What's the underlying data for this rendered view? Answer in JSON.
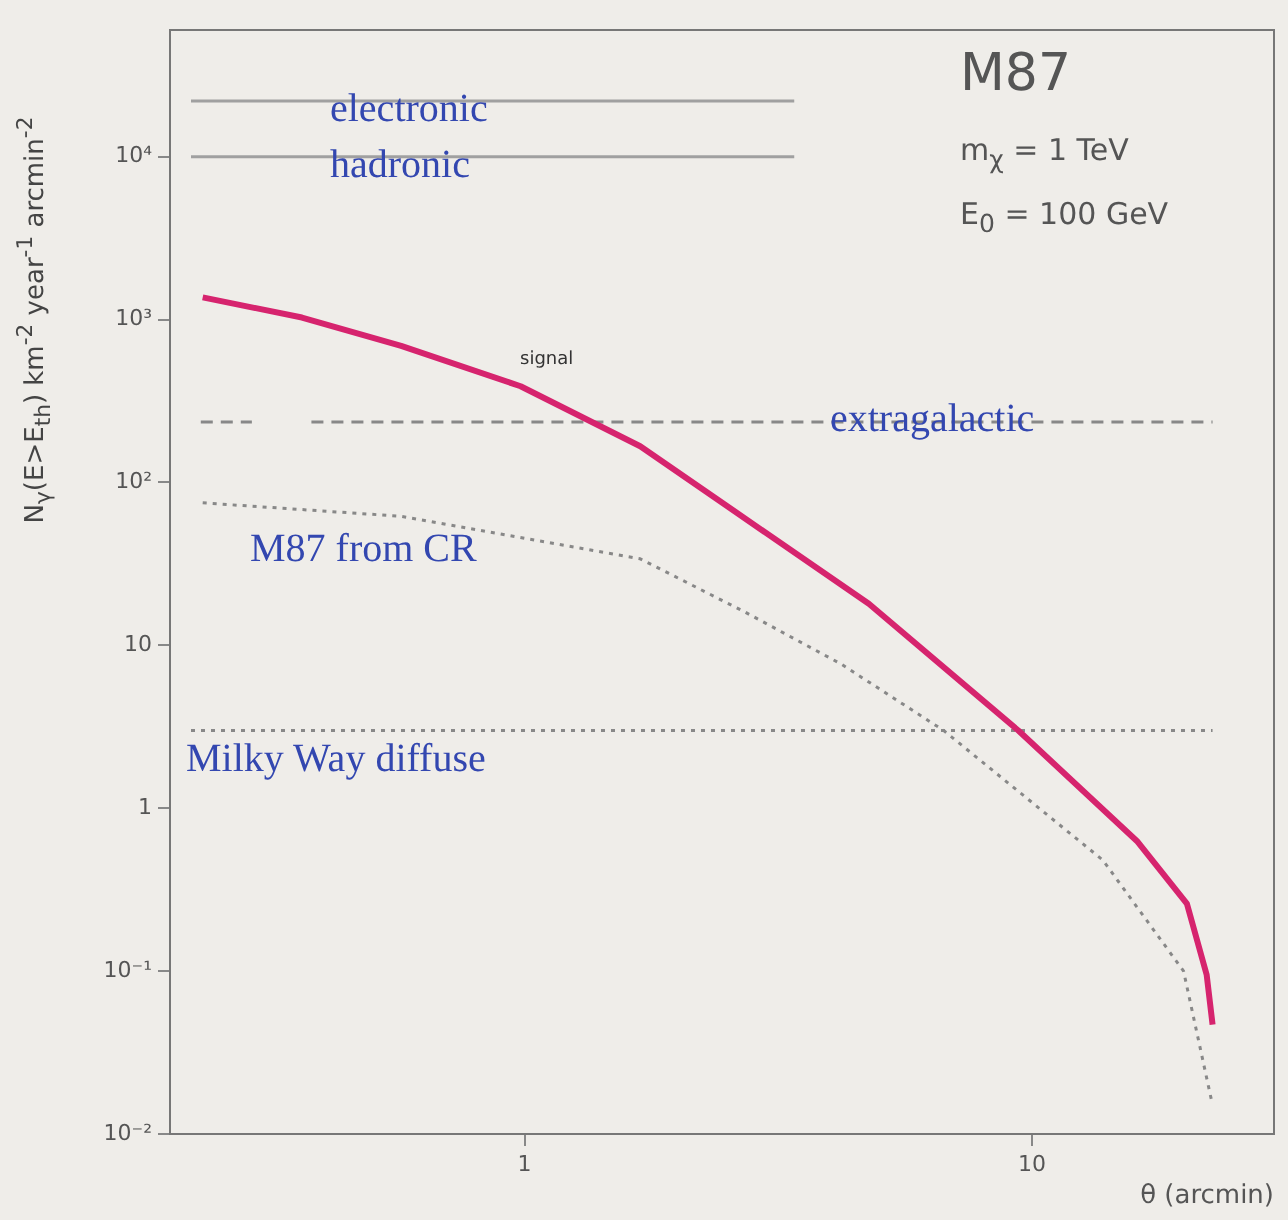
{
  "chart_data": {
    "type": "line",
    "xlabel": "θ (arcmin)",
    "ylabel": "N$_{γ}$(E>E$_{th}$) km$^{-2}$ year$^{-1}$ arcmin$^{-2}$",
    "annotations": [
      "M87",
      "m$_{χ}$ = 1 TeV",
      "E$_{0}$ = 100 GeV"
    ],
    "log": "xy",
    "xlim": [
      0.2,
      30
    ],
    "ylim": [
      0.01,
      60000
    ],
    "xticks": [
      1,
      10
    ],
    "yticks": [
      {
        "value": 0.01,
        "label": "10⁻²"
      },
      {
        "value": 0.1,
        "label": "10⁻¹"
      },
      1,
      10,
      {
        "value": 100,
        "label": "10²"
      },
      {
        "value": 1000,
        "label": "10³"
      },
      {
        "value": 10000,
        "label": "10⁴"
      }
    ],
    "grid": false,
    "legend": false,
    "marker": "none",
    "series": [
      {
        "name": "electronic",
        "color": "#a0a0a0",
        "line_style": "solid",
        "x": [
          0.22,
          3.4
        ],
        "values": [
          22000,
          22000
        ]
      },
      {
        "name": "hadronic",
        "color": "#a0a0a0",
        "line_style": "solid",
        "x": [
          0.22,
          3.4
        ],
        "values": [
          10000,
          10000
        ]
      },
      {
        "name": "signal",
        "color": "#d6246e",
        "line_style": "solid",
        "x": [
          0.232,
          0.364,
          0.571,
          0.982,
          1.69,
          4.77,
          9.4,
          16.1,
          20.2,
          22.1,
          22.7
        ],
        "values": [
          1370,
          1030,
          690,
          390,
          167,
          18,
          3.0,
          0.63,
          0.26,
          0.095,
          0.047
        ]
      },
      {
        "name": "extragalactic",
        "color": "#888888",
        "line_style": "dashed",
        "x": [
          0.23,
          0.29,
          0.33,
          0.38,
          22.7
        ],
        "values": [
          235,
          235,
          null,
          235,
          235
        ]
      },
      {
        "name": "M87 from CR",
        "color": "#888888",
        "line_style": "dotted",
        "x": [
          0.232,
          0.571,
          1.69,
          2.72,
          4.2,
          6.7,
          13.8,
          19.9,
          22.6
        ],
        "values": [
          75,
          62,
          34,
          16,
          7.7,
          3.0,
          0.48,
          0.1,
          0.016
        ]
      },
      {
        "name": "Milky Way diffuse",
        "color": "#888888",
        "line_style": "dotted",
        "x": [
          0.22,
          22.7
        ],
        "values": [
          3.0,
          3.0
        ]
      }
    ]
  }
}
